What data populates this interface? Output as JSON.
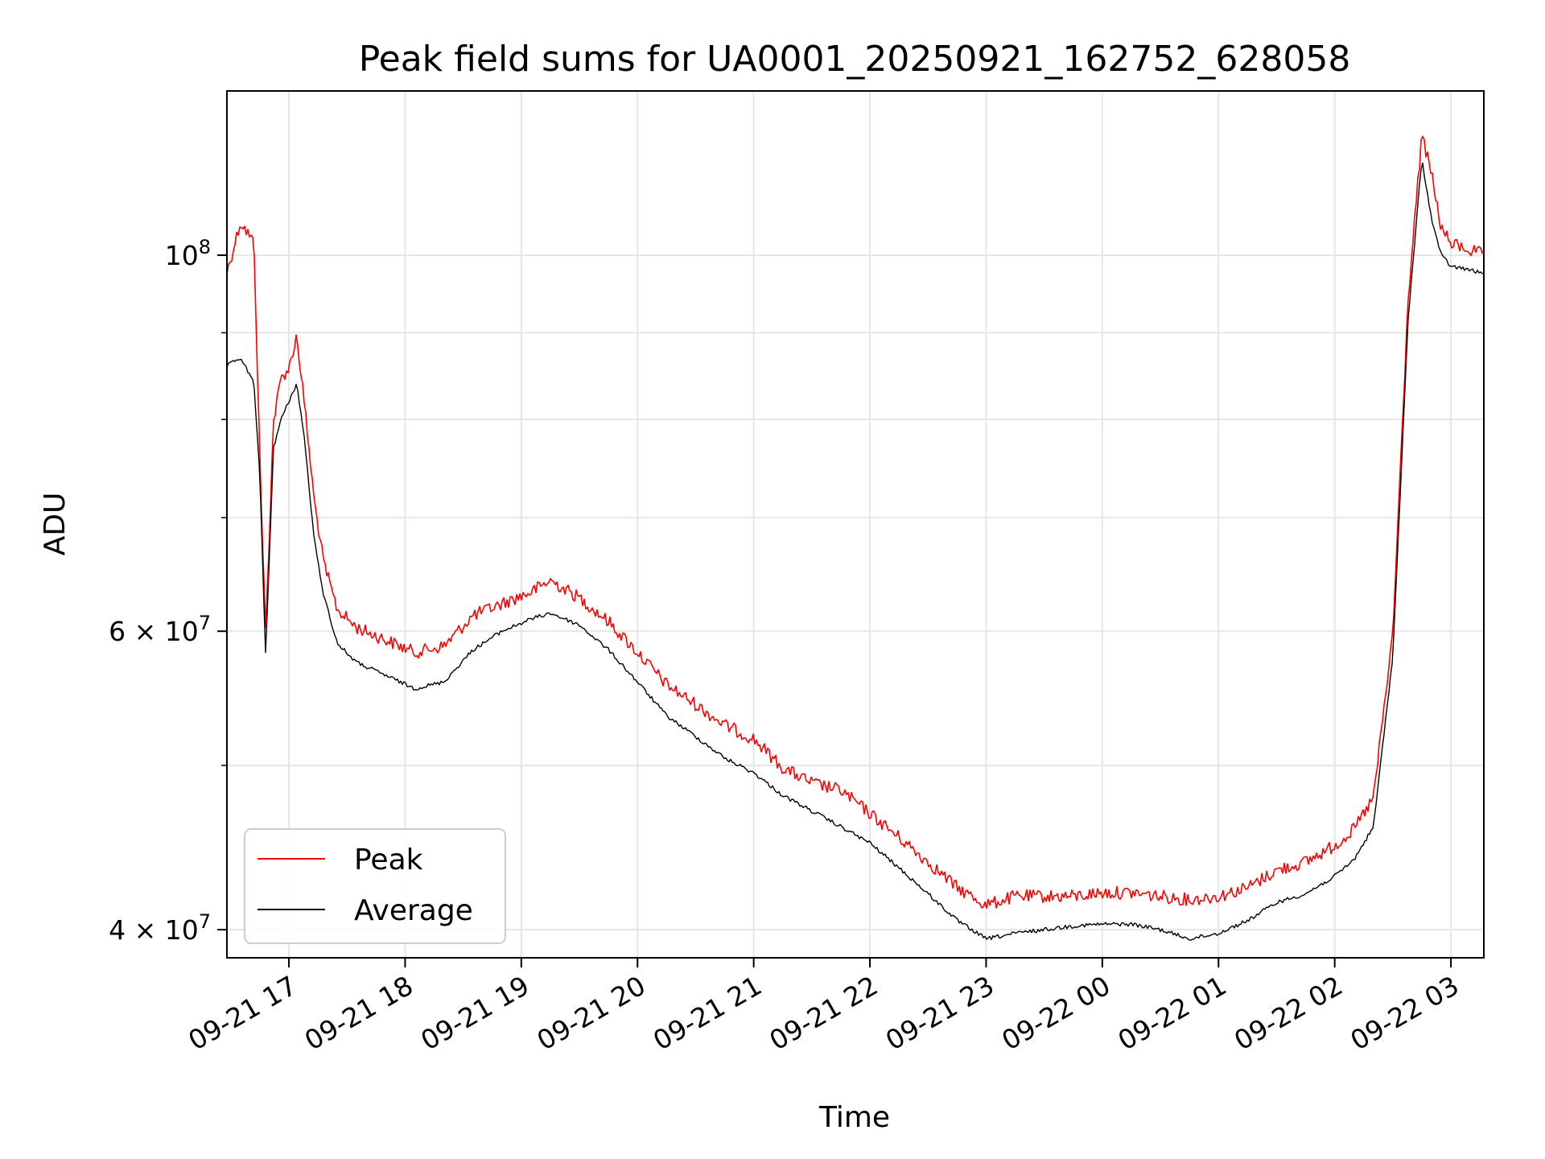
{
  "chart_data": {
    "type": "line",
    "title": "Peak field sums for UA0001_20250921_162752_628058",
    "xlabel": "Time",
    "ylabel": "ADU",
    "yscale": "log",
    "grid": true,
    "legend_position": "bottom-left",
    "xlim": [
      "2025-09-21 16:28",
      "2025-09-22 03:17"
    ],
    "ylim": [
      38500000,
      125000000
    ],
    "x_ticks": [
      {
        "value": "2025-09-21 17:00",
        "label": "09-21 17"
      },
      {
        "value": "2025-09-21 18:00",
        "label": "09-21 18"
      },
      {
        "value": "2025-09-21 19:00",
        "label": "09-21 19"
      },
      {
        "value": "2025-09-21 20:00",
        "label": "09-21 20"
      },
      {
        "value": "2025-09-21 21:00",
        "label": "09-21 21"
      },
      {
        "value": "2025-09-21 22:00",
        "label": "09-21 22"
      },
      {
        "value": "2025-09-21 23:00",
        "label": "09-21 23"
      },
      {
        "value": "2025-09-22 00:00",
        "label": "09-22 00"
      },
      {
        "value": "2025-09-22 01:00",
        "label": "09-22 01"
      },
      {
        "value": "2025-09-22 02:00",
        "label": "09-22 02"
      },
      {
        "value": "2025-09-22 03:00",
        "label": "09-22 03"
      }
    ],
    "y_major_ticks": [
      {
        "value": 40000000,
        "base": "4 × 10",
        "exp": "7"
      },
      {
        "value": 60000000,
        "base": "6 × 10",
        "exp": "7"
      },
      {
        "value": 100000000,
        "base": "10",
        "exp": "8"
      }
    ],
    "y_minor_ticks": [
      50000000,
      70000000,
      80000000,
      90000000
    ],
    "series": [
      {
        "name": "Peak",
        "color": "#ff0000",
        "x": [
          "2025-09-21 16:28",
          "2025-09-21 16:35",
          "2025-09-21 16:42",
          "2025-09-21 16:45",
          "2025-09-21 16:48",
          "2025-09-21 16:52",
          "2025-09-21 16:56",
          "2025-09-21 17:00",
          "2025-09-21 17:04",
          "2025-09-21 17:08",
          "2025-09-21 17:13",
          "2025-09-21 17:18",
          "2025-09-21 17:25",
          "2025-09-21 17:35",
          "2025-09-21 17:50",
          "2025-09-21 18:05",
          "2025-09-21 18:20",
          "2025-09-21 18:35",
          "2025-09-21 18:50",
          "2025-09-21 19:05",
          "2025-09-21 19:15",
          "2025-09-21 19:30",
          "2025-09-21 19:45",
          "2025-09-21 20:00",
          "2025-09-21 20:15",
          "2025-09-21 20:30",
          "2025-09-21 20:45",
          "2025-09-21 21:00",
          "2025-09-21 21:15",
          "2025-09-21 21:30",
          "2025-09-21 21:45",
          "2025-09-21 22:00",
          "2025-09-21 22:15",
          "2025-09-21 22:30",
          "2025-09-21 22:45",
          "2025-09-21 23:00",
          "2025-09-21 23:15",
          "2025-09-21 23:30",
          "2025-09-21 23:45",
          "2025-09-22 00:00",
          "2025-09-22 00:15",
          "2025-09-22 00:30",
          "2025-09-22 00:45",
          "2025-09-22 01:00",
          "2025-09-22 01:15",
          "2025-09-22 01:30",
          "2025-09-22 01:45",
          "2025-09-22 02:00",
          "2025-09-22 02:10",
          "2025-09-22 02:20",
          "2025-09-22 02:30",
          "2025-09-22 02:38",
          "2025-09-22 02:45",
          "2025-09-22 02:50",
          "2025-09-22 02:55",
          "2025-09-22 03:00",
          "2025-09-22 03:10",
          "2025-09-22 03:17"
        ],
        "y": [
          98000000,
          105000000,
          102000000,
          76000000,
          60000000,
          80000000,
          85000000,
          86000000,
          90000000,
          82000000,
          72000000,
          66000000,
          62000000,
          60500000,
          59500000,
          58500000,
          59000000,
          61500000,
          62500000,
          63500000,
          64500000,
          63000000,
          61000000,
          58500000,
          56000000,
          54500000,
          53000000,
          52000000,
          50000000,
          49000000,
          48500000,
          47000000,
          45500000,
          44000000,
          42500000,
          41500000,
          42000000,
          42000000,
          42000000,
          42200000,
          42200000,
          42000000,
          41800000,
          42000000,
          42500000,
          43500000,
          44000000,
          45000000,
          46000000,
          48000000,
          60000000,
          95000000,
          118000000,
          112000000,
          104000000,
          102000000,
          101000000,
          100500000
        ]
      },
      {
        "name": "Average",
        "color": "#000000",
        "x": [
          "2025-09-21 16:28",
          "2025-09-21 16:35",
          "2025-09-21 16:42",
          "2025-09-21 16:45",
          "2025-09-21 16:48",
          "2025-09-21 16:52",
          "2025-09-21 16:56",
          "2025-09-21 17:00",
          "2025-09-21 17:04",
          "2025-09-21 17:08",
          "2025-09-21 17:13",
          "2025-09-21 17:18",
          "2025-09-21 17:25",
          "2025-09-21 17:35",
          "2025-09-21 17:50",
          "2025-09-21 18:05",
          "2025-09-21 18:20",
          "2025-09-21 18:35",
          "2025-09-21 18:50",
          "2025-09-21 19:05",
          "2025-09-21 19:15",
          "2025-09-21 19:30",
          "2025-09-21 19:45",
          "2025-09-21 20:00",
          "2025-09-21 20:15",
          "2025-09-21 20:30",
          "2025-09-21 20:45",
          "2025-09-21 21:00",
          "2025-09-21 21:15",
          "2025-09-21 21:30",
          "2025-09-21 21:45",
          "2025-09-21 22:00",
          "2025-09-21 22:15",
          "2025-09-21 22:30",
          "2025-09-21 22:45",
          "2025-09-21 23:00",
          "2025-09-21 23:15",
          "2025-09-21 23:30",
          "2025-09-21 23:45",
          "2025-09-22 00:00",
          "2025-09-22 00:15",
          "2025-09-22 00:30",
          "2025-09-22 00:45",
          "2025-09-22 01:00",
          "2025-09-22 01:15",
          "2025-09-22 01:30",
          "2025-09-22 01:45",
          "2025-09-22 02:00",
          "2025-09-22 02:10",
          "2025-09-22 02:20",
          "2025-09-22 02:30",
          "2025-09-22 02:38",
          "2025-09-22 02:45",
          "2025-09-22 02:50",
          "2025-09-22 02:55",
          "2025-09-22 03:00",
          "2025-09-22 03:10",
          "2025-09-22 03:17"
        ],
        "y": [
          86000000,
          87000000,
          84000000,
          74000000,
          58000000,
          77000000,
          80000000,
          82000000,
          84000000,
          78000000,
          68000000,
          63000000,
          59000000,
          57500000,
          56500000,
          55500000,
          56000000,
          58500000,
          60000000,
          61000000,
          61500000,
          60500000,
          58500000,
          56000000,
          53500000,
          52000000,
          50500000,
          49500000,
          48000000,
          47000000,
          46000000,
          45000000,
          43500000,
          42000000,
          40500000,
          39500000,
          39800000,
          40000000,
          40200000,
          40300000,
          40300000,
          40000000,
          39500000,
          39800000,
          40500000,
          41500000,
          42000000,
          43000000,
          44000000,
          46000000,
          58000000,
          92000000,
          114000000,
          105000000,
          100000000,
          98500000,
          98000000,
          97500000
        ]
      }
    ]
  }
}
